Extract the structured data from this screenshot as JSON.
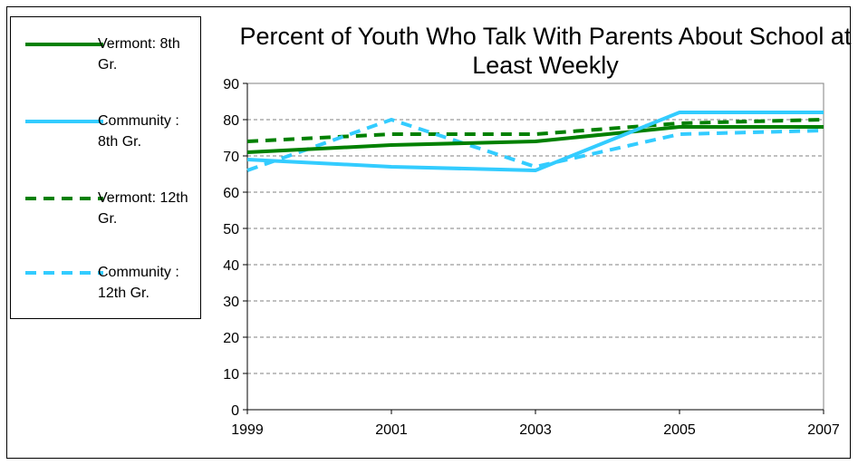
{
  "chart_data": {
    "type": "line",
    "title": "Percent of Youth Who Talk With Parents About School at Least Weekly",
    "x": [
      "1999",
      "2001",
      "2003",
      "2005",
      "2007"
    ],
    "ylim": [
      0,
      90
    ],
    "yticks": [
      "0",
      "10",
      "20",
      "30",
      "40",
      "50",
      "60",
      "70",
      "80",
      "90"
    ],
    "grid": true,
    "legend_position": "left",
    "series": [
      {
        "name": "Vermont: 8th Gr.",
        "values": [
          71,
          73,
          74,
          78,
          78
        ],
        "color": "#008000",
        "style": "solid"
      },
      {
        "name": "Community : 8th Gr.",
        "values": [
          69,
          67,
          66,
          82,
          82
        ],
        "color": "#33CCFF",
        "style": "solid"
      },
      {
        "name": "Vermont: 12th Gr.",
        "values": [
          74,
          76,
          76,
          79,
          80
        ],
        "color": "#008000",
        "style": "dashed"
      },
      {
        "name": "Community : 12th Gr.",
        "values": [
          66,
          80,
          67,
          76,
          77
        ],
        "color": "#33CCFF",
        "style": "dashed"
      }
    ]
  }
}
